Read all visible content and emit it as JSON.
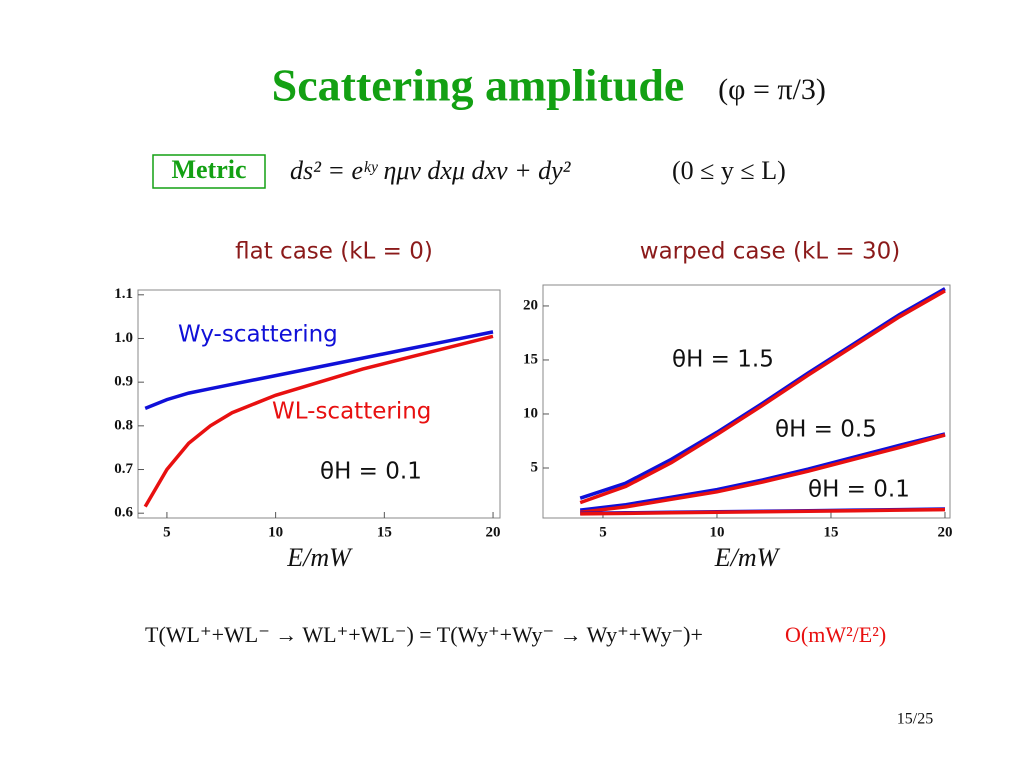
{
  "title": "Scattering amplitude",
  "title_math": "(φ = π/3)",
  "metric_label": "Metric",
  "metric_formula": "ds² = eᵏʸ ημν dxμ dxν + dy²",
  "metric_range": "(0 ≤ y ≤ L)",
  "formula": "T(WL⁺+WL⁻ → WL⁺+WL⁻) = T(Wy⁺+Wy⁻ → Wy⁺+Wy⁻)+",
  "formula_correction": "O(mW²/E²)",
  "page_number": "15/25",
  "chart_data": [
    {
      "type": "line",
      "title": "flat case (kL = 0)",
      "x_label": "E/mW",
      "annotation": "θH = 0.1",
      "x": [
        4,
        5,
        6,
        7,
        8,
        10,
        12,
        14,
        16,
        18,
        20
      ],
      "series": [
        {
          "name": "Wy-scattering",
          "color": "#1010d8",
          "values": [
            0.84,
            0.86,
            0.875,
            0.885,
            0.895,
            0.915,
            0.935,
            0.955,
            0.975,
            0.995,
            1.015
          ]
        },
        {
          "name": "WL-scattering",
          "color": "#e81010",
          "values": [
            0.615,
            0.7,
            0.76,
            0.8,
            0.83,
            0.87,
            0.9,
            0.93,
            0.955,
            0.98,
            1.005
          ]
        }
      ],
      "xlim": [
        3.67,
        20.32
      ],
      "xticks": [
        5,
        10,
        15,
        20
      ],
      "ylim": [
        0.589,
        1.111
      ],
      "yticks": [
        1.1,
        {
          "value": 1,
          "label": "1.0"
        },
        0.9,
        0.8,
        0.7,
        0.6
      ]
    },
    {
      "type": "line",
      "title": "warped case (kL = 30)",
      "x_label": "E/mW",
      "x": [
        4,
        6,
        8,
        10,
        12,
        14,
        16,
        18,
        20
      ],
      "series": [
        {
          "name": "θH = 1.5",
          "color": "#1010d8",
          "values": [
            2.2,
            3.6,
            5.8,
            8.3,
            11.0,
            13.8,
            16.5,
            19.2,
            21.6
          ]
        },
        {
          "color": "#e81010",
          "values": [
            1.8,
            3.3,
            5.5,
            8.1,
            10.8,
            13.6,
            16.3,
            19.0,
            21.4
          ]
        },
        {
          "name": "θH = 0.5",
          "color": "#1010d8",
          "values": [
            1.1,
            1.6,
            2.3,
            3.0,
            3.9,
            4.9,
            6.0,
            7.1,
            8.15
          ]
        },
        {
          "color": "#e81010",
          "values": [
            0.9,
            1.4,
            2.1,
            2.8,
            3.7,
            4.7,
            5.8,
            6.9,
            8.05
          ]
        },
        {
          "name": "θH = 0.1",
          "color": "#1010d8",
          "values": [
            0.8,
            0.85,
            0.9,
            0.95,
            1.0,
            1.05,
            1.1,
            1.15,
            1.2
          ]
        },
        {
          "color": "#e81010",
          "values": [
            0.75,
            0.8,
            0.85,
            0.9,
            0.95,
            1.0,
            1.05,
            1.1,
            1.15
          ]
        }
      ],
      "xlim": [
        2.37,
        20.22
      ],
      "xticks": [
        5,
        10,
        15,
        20
      ],
      "ylim": [
        0.37,
        21.94
      ],
      "yticks": [
        5,
        10,
        15,
        20
      ]
    }
  ]
}
